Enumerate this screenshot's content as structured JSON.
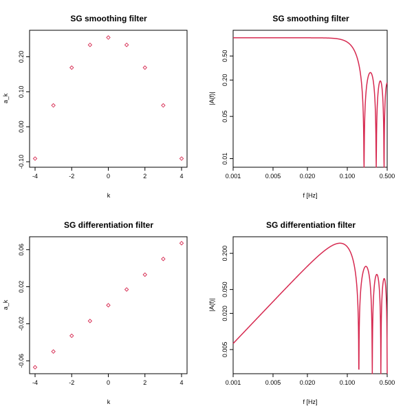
{
  "colors": {
    "series": "#d6284f",
    "axis": "#000000",
    "background": "#ffffff"
  },
  "chart_data": [
    {
      "type": "scatter",
      "title": "SG smoothing filter",
      "xlabel": "k",
      "ylabel": "a_k",
      "xlim": [
        -4,
        4
      ],
      "ylim": [
        -0.1,
        0.26
      ],
      "xticks": [
        {
          "v": -4,
          "label": "-4"
        },
        {
          "v": -2,
          "label": "-2"
        },
        {
          "v": 0,
          "label": "0"
        },
        {
          "v": 2,
          "label": "2"
        },
        {
          "v": 4,
          "label": "4"
        }
      ],
      "yticks": [
        {
          "v": -0.1,
          "label": "-0.10"
        },
        {
          "v": 0.0,
          "label": "0.00"
        },
        {
          "v": 0.1,
          "label": "0.10"
        },
        {
          "v": 0.2,
          "label": "0.20"
        }
      ],
      "x": [
        -4,
        -3,
        -2,
        -1,
        0,
        1,
        2,
        3,
        4
      ],
      "y": [
        -0.091,
        0.061,
        0.169,
        0.234,
        0.255,
        0.234,
        0.169,
        0.061,
        -0.091
      ],
      "marker": "open-diamond"
    },
    {
      "type": "line",
      "title": "SG smoothing filter",
      "xlabel": "f [Hz]",
      "ylabel": "|A(f)|",
      "xscale": "log",
      "yscale": "log",
      "xlim": [
        0.001,
        0.5
      ],
      "ylim": [
        0.008,
        1.2
      ],
      "xticks": [
        {
          "v": 0.001,
          "label": "0.001"
        },
        {
          "v": 0.005,
          "label": "0.005"
        },
        {
          "v": 0.02,
          "label": "0.020"
        },
        {
          "v": 0.1,
          "label": "0.100"
        },
        {
          "v": 0.5,
          "label": "0.500"
        }
      ],
      "yticks": [
        {
          "v": 0.01,
          "label": "0.01"
        },
        {
          "v": 0.05,
          "label": "0.05"
        },
        {
          "v": 0.2,
          "label": "0.20"
        },
        {
          "v": 0.5,
          "label": "0.50"
        }
      ],
      "filter": "smooth",
      "coefficients_k": [
        -4,
        -3,
        -2,
        -1,
        0,
        1,
        2,
        3,
        4
      ],
      "coefficients": [
        -0.091,
        0.061,
        0.169,
        0.234,
        0.255,
        0.234,
        0.169,
        0.061,
        -0.091
      ]
    },
    {
      "type": "scatter",
      "title": "SG differentiation filter",
      "xlabel": "k",
      "ylabel": "a_k",
      "xlim": [
        -4,
        4
      ],
      "ylim": [
        -0.068,
        0.068
      ],
      "xticks": [
        {
          "v": -4,
          "label": "-4"
        },
        {
          "v": -2,
          "label": "-2"
        },
        {
          "v": 0,
          "label": "0"
        },
        {
          "v": 2,
          "label": "2"
        },
        {
          "v": 4,
          "label": "4"
        }
      ],
      "yticks": [
        {
          "v": -0.06,
          "label": "-0.06"
        },
        {
          "v": -0.02,
          "label": "-0.02"
        },
        {
          "v": 0.02,
          "label": "0.02"
        },
        {
          "v": 0.06,
          "label": "0.06"
        }
      ],
      "x": [
        -4,
        -3,
        -2,
        -1,
        0,
        1,
        2,
        3,
        4
      ],
      "y": [
        -0.067,
        -0.05,
        -0.033,
        -0.017,
        0.0,
        0.017,
        0.033,
        0.05,
        0.067
      ],
      "marker": "open-diamond"
    },
    {
      "type": "line",
      "title": "SG differentiation filter",
      "xlabel": "f [Hz]",
      "ylabel": "|A(f)|",
      "xscale": "log",
      "yscale": "log",
      "xlim": [
        0.001,
        0.5
      ],
      "ylim": [
        0.0022,
        0.34
      ],
      "xticks": [
        {
          "v": 0.001,
          "label": "0.001"
        },
        {
          "v": 0.005,
          "label": "0.005"
        },
        {
          "v": 0.02,
          "label": "0.020"
        },
        {
          "v": 0.1,
          "label": "0.100"
        },
        {
          "v": 0.5,
          "label": "0.500"
        }
      ],
      "yticks": [
        {
          "v": 0.005,
          "label": "0.005"
        },
        {
          "v": 0.02,
          "label": "0.020"
        },
        {
          "v": 0.05,
          "label": "0.050"
        },
        {
          "v": 0.2,
          "label": "0.200"
        }
      ],
      "filter": "diff",
      "coefficients_k": [
        -4,
        -3,
        -2,
        -1,
        0,
        1,
        2,
        3,
        4
      ],
      "coefficients": [
        -0.067,
        -0.05,
        -0.033,
        -0.017,
        0.0,
        0.017,
        0.033,
        0.05,
        0.067
      ]
    }
  ]
}
